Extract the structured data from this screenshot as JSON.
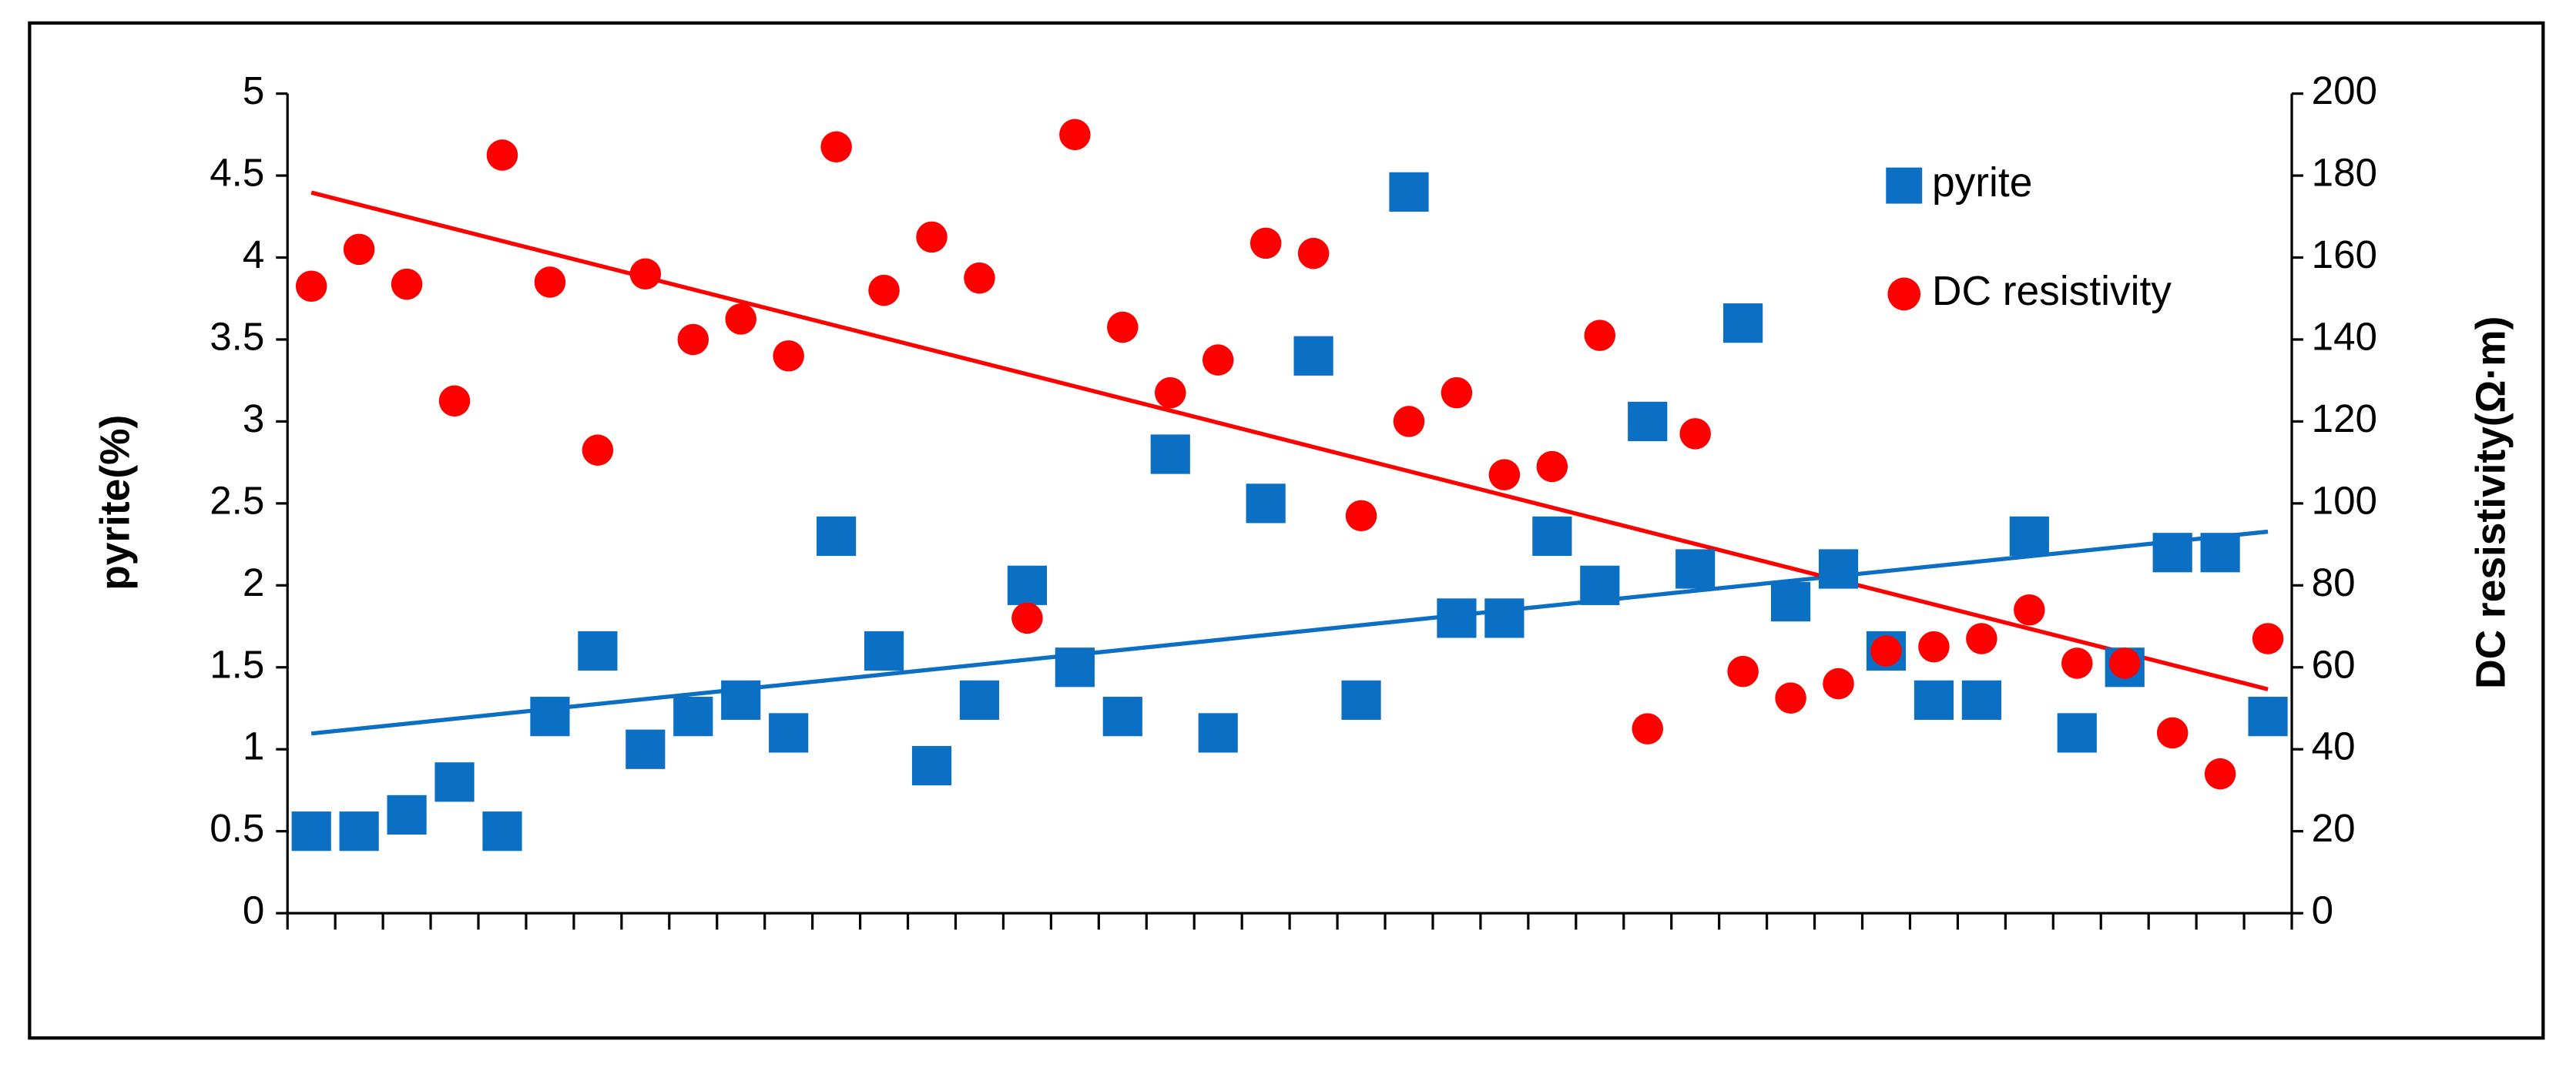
{
  "chart_data": {
    "type": "scatter",
    "categories": [
      null,
      null,
      null,
      null,
      null,
      null,
      null,
      null,
      null,
      null,
      null,
      null,
      null,
      null,
      null,
      null,
      null,
      null,
      null,
      null,
      null,
      null,
      null,
      null,
      null,
      null,
      null,
      null,
      null,
      null,
      null,
      null,
      null,
      null,
      null,
      null,
      null,
      null,
      null,
      null,
      null,
      null
    ],
    "y_label": "pyrite(%)",
    "y2_label": "DC resistivity(Ω·m)",
    "ylim": [
      0,
      5
    ],
    "yticks": [
      0,
      0.5,
      1,
      1.5,
      2,
      2.5,
      3,
      3.5,
      4,
      4.5,
      5
    ],
    "y2lim": [
      0,
      200
    ],
    "y2ticks": [
      0,
      20,
      40,
      60,
      80,
      100,
      120,
      140,
      160,
      180,
      200
    ],
    "grid": false,
    "legend": "upper right",
    "trendline": true,
    "series": [
      {
        "name": "pyrite",
        "color": "#0b6fc4",
        "marker": "square",
        "values": [
          0.5,
          0.5,
          0.6,
          0.8,
          0.5,
          1.2,
          1.6,
          1.0,
          1.2,
          1.3,
          1.1,
          2.3,
          1.6,
          0.9,
          1.3,
          2.0,
          1.5,
          1.2,
          2.8,
          1.1,
          2.5,
          3.4,
          1.3,
          4.4,
          1.8,
          1.8,
          2.3,
          2.0,
          3.0,
          2.1,
          3.6,
          1.9,
          2.1,
          1.6,
          1.3,
          1.3,
          2.3,
          1.1,
          1.5,
          2.2,
          2.2,
          1.2
        ]
      },
      {
        "name": "DC resistivity",
        "color": "#ff0000",
        "marker": "circle",
        "axis": "y2",
        "values": [
          153,
          162,
          153.5,
          125,
          185,
          154,
          113,
          156,
          140,
          145,
          136,
          187,
          152,
          165,
          155,
          72,
          190,
          143,
          127,
          135,
          163.5,
          161,
          97,
          120,
          127,
          107,
          109,
          141,
          45,
          117,
          59,
          52.5,
          56,
          64,
          65,
          67,
          74,
          61,
          61,
          44,
          34,
          67
        ]
      }
    ]
  }
}
